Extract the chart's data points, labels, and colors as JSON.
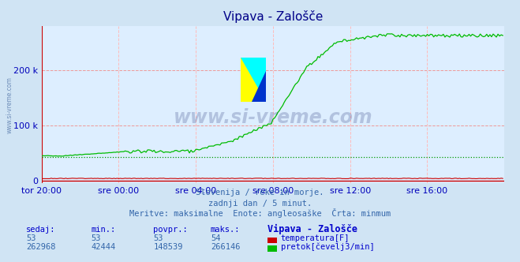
{
  "title": "Vipava - Zalošče",
  "bg_color": "#d0e4f4",
  "plot_bg_color": "#ddeeff",
  "grid_color_h": "#ee9999",
  "grid_color_v": "#ffbbbb",
  "xlabel_color": "#0000bb",
  "title_color": "#000088",
  "text_color": "#3366aa",
  "watermark": "www.si-vreme.com",
  "subtitle_lines": [
    "Slovenija / reke in morje.",
    "zadnji dan / 5 minut.",
    "Meritve: maksimalne  Enote: angleosaške  Črta: minmum"
  ],
  "table_headers": [
    "sedaj:",
    "min.:",
    "povpr.:",
    "maks.:",
    "Vipava - Zalošče"
  ],
  "table_row1": [
    "53",
    "53",
    "53",
    "54"
  ],
  "table_row2": [
    "262968",
    "42444",
    "148539",
    "266146"
  ],
  "legend_labels": [
    "temperatura[F]",
    "pretok[čevelj3/min]"
  ],
  "legend_colors": [
    "#cc0000",
    "#00bb00"
  ],
  "xtick_labels": [
    "tor 20:00",
    "sre 00:00",
    "sre 04:00",
    "sre 08:00",
    "sre 12:00",
    "sre 16:00"
  ],
  "ytick_labels": [
    "0",
    "100 k",
    "200 k"
  ],
  "ytick_values": [
    0,
    100000,
    200000
  ],
  "ymax": 280000,
  "xmin": 0,
  "xmax": 288,
  "n_points": 288,
  "temp_min_val": 53,
  "temp_max_val": 54,
  "flow_min_val": 42444,
  "flow_max_val": 266146,
  "flow_avg_val": 148539,
  "temp_color": "#cc0000",
  "flow_color": "#00bb00",
  "min_line_color": "#009900",
  "axis_color": "#cc0000"
}
